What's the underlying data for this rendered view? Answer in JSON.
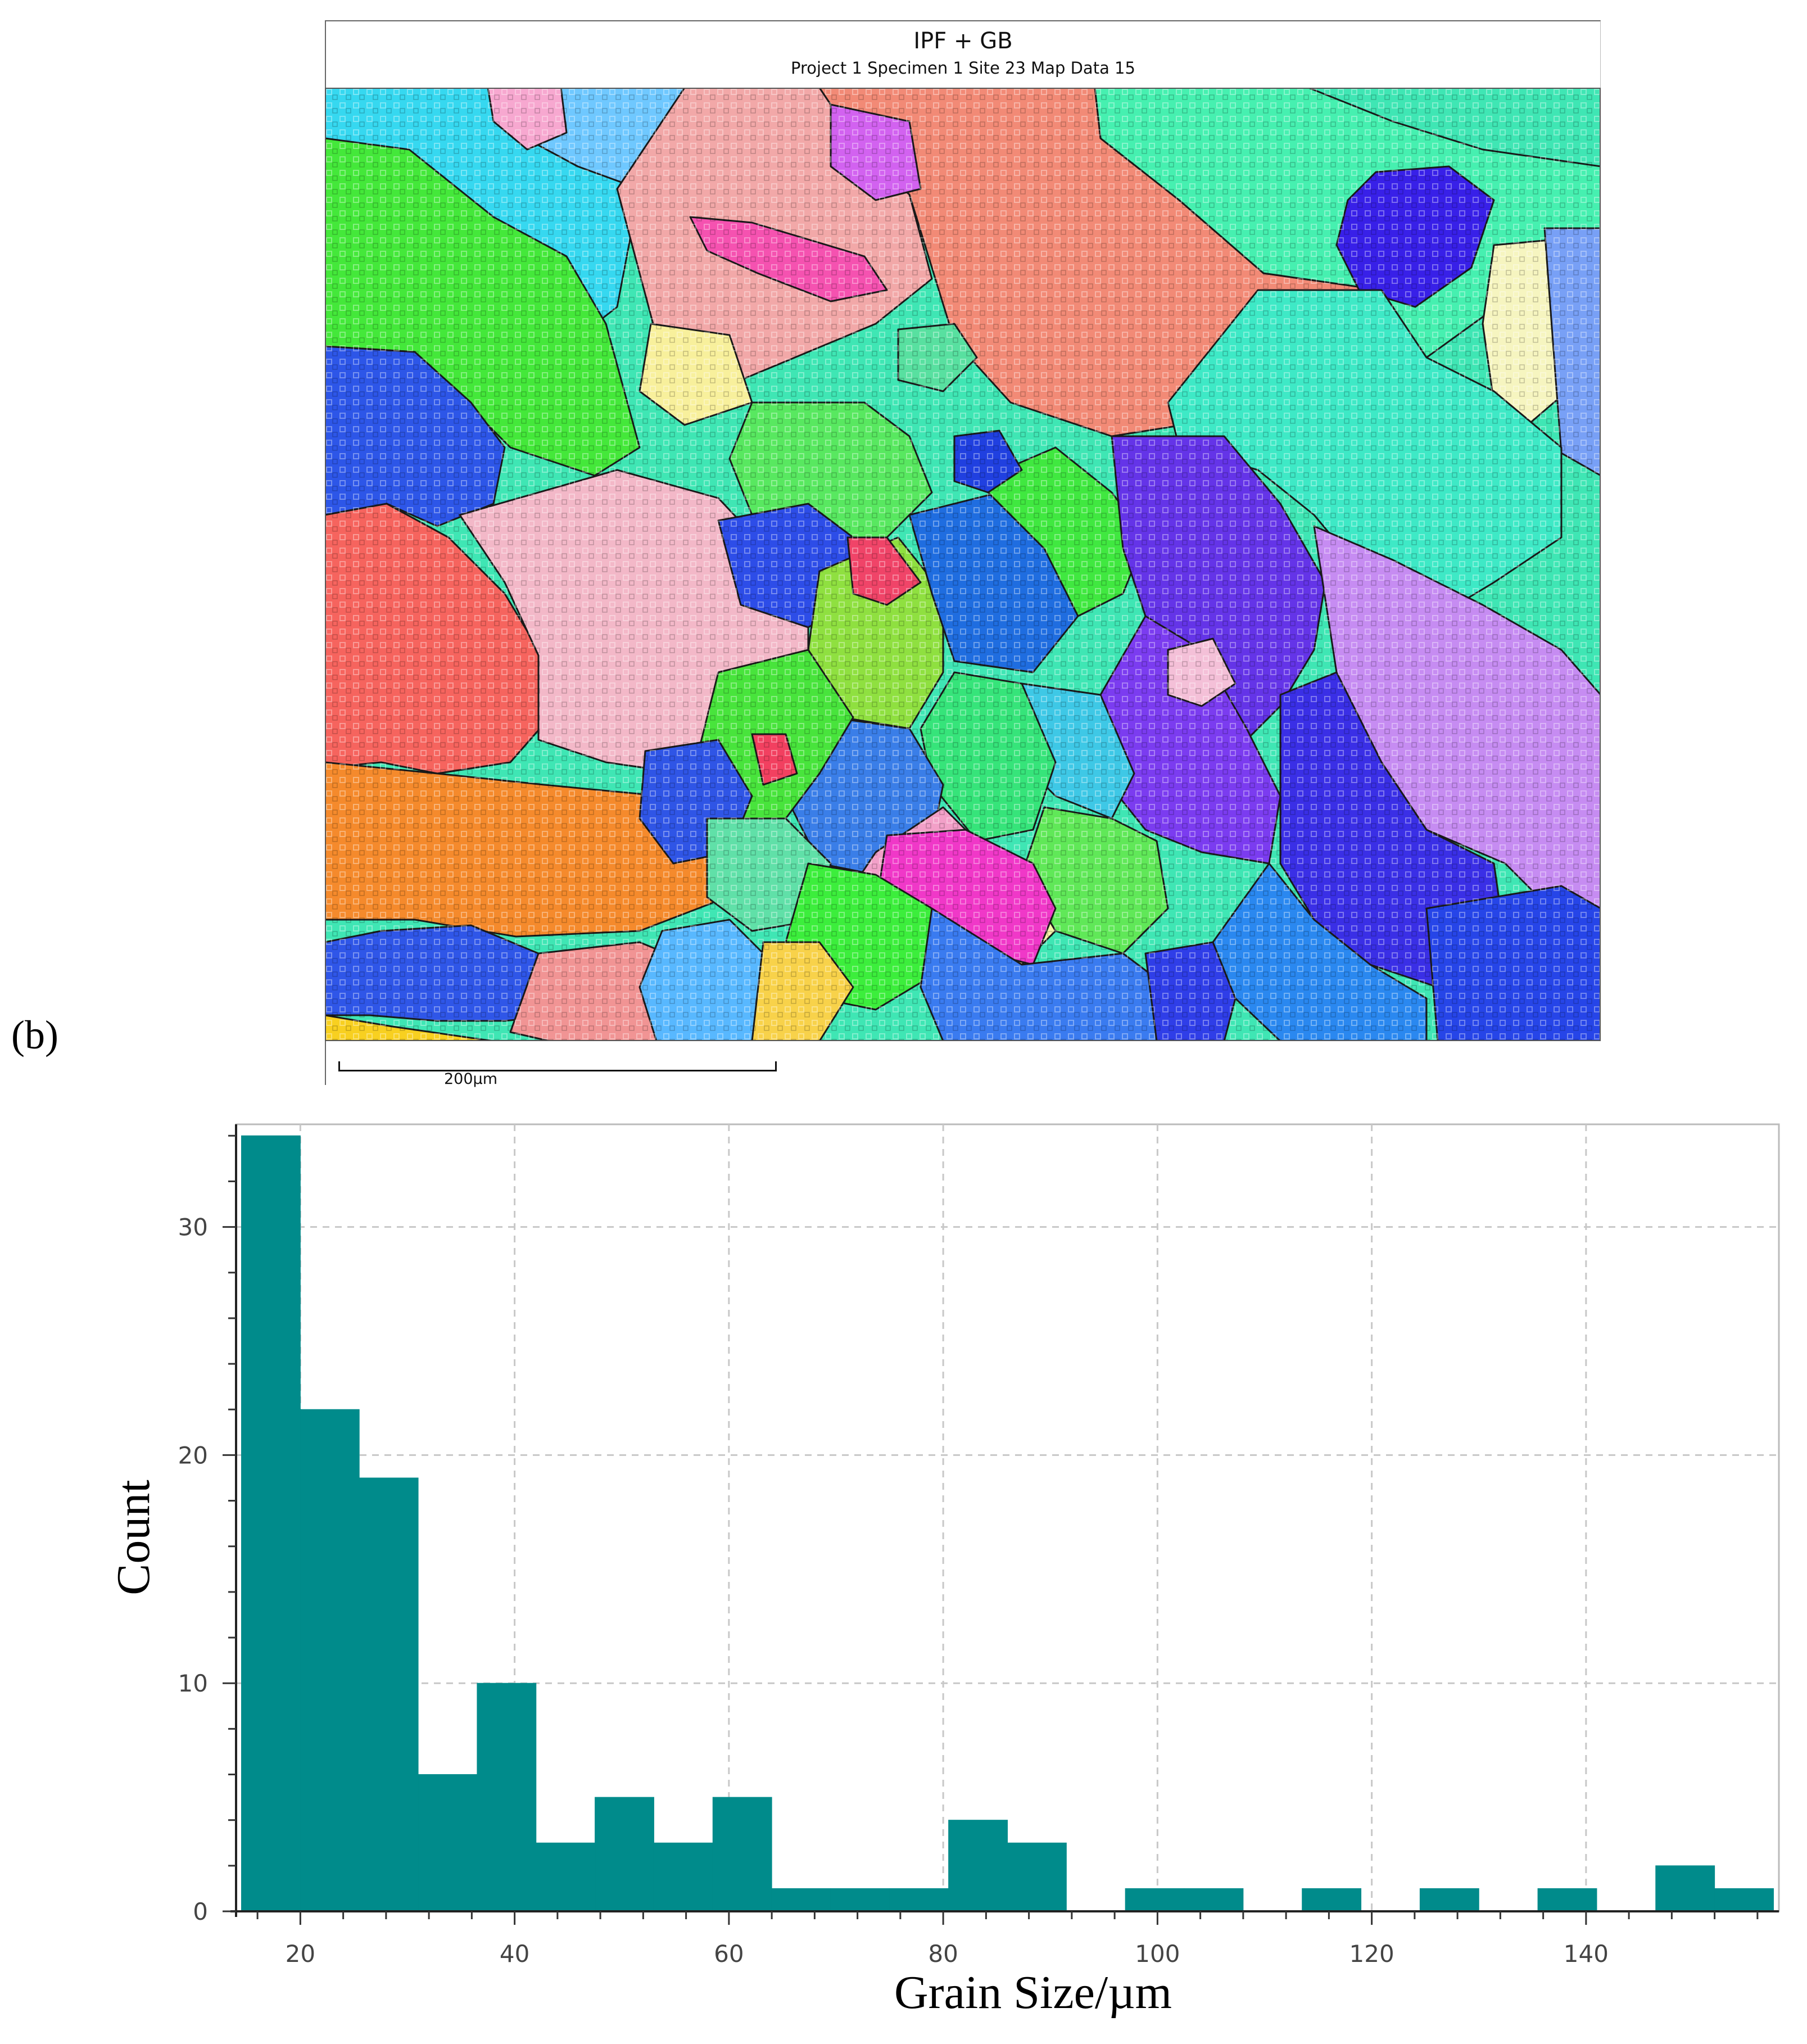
{
  "panel_label": "(b)",
  "map": {
    "title": "IPF + GB",
    "subtitle": "Project 1 Specimen 1 Site 23 Map Data 15",
    "scale_bar_label": "200µm"
  },
  "chart_data": {
    "type": "bar",
    "title": "",
    "xlabel": "Grain Size/µm",
    "ylabel": "Count",
    "xlim": [
      14,
      158
    ],
    "ylim": [
      0,
      34.5
    ],
    "xticks": [
      20,
      40,
      60,
      80,
      100,
      120,
      140
    ],
    "yticks": [
      0,
      10,
      20,
      30
    ],
    "grid": true,
    "bar_color": "#008b8b",
    "bins": [
      {
        "x0": 14.5,
        "x1": 20.0,
        "count": 34
      },
      {
        "x0": 20.0,
        "x1": 25.5,
        "count": 22
      },
      {
        "x0": 25.5,
        "x1": 31.0,
        "count": 19
      },
      {
        "x0": 31.0,
        "x1": 36.5,
        "count": 6
      },
      {
        "x0": 36.5,
        "x1": 42.0,
        "count": 10
      },
      {
        "x0": 42.0,
        "x1": 47.5,
        "count": 3
      },
      {
        "x0": 47.5,
        "x1": 53.0,
        "count": 5
      },
      {
        "x0": 53.0,
        "x1": 58.5,
        "count": 3
      },
      {
        "x0": 58.5,
        "x1": 64.0,
        "count": 5
      },
      {
        "x0": 64.0,
        "x1": 69.5,
        "count": 1
      },
      {
        "x0": 69.5,
        "x1": 75.0,
        "count": 1
      },
      {
        "x0": 75.0,
        "x1": 80.5,
        "count": 1
      },
      {
        "x0": 80.5,
        "x1": 86.0,
        "count": 4
      },
      {
        "x0": 86.0,
        "x1": 91.5,
        "count": 3
      },
      {
        "x0": 91.5,
        "x1": 97.0,
        "count": 0
      },
      {
        "x0": 97.0,
        "x1": 102.5,
        "count": 1
      },
      {
        "x0": 102.5,
        "x1": 108.0,
        "count": 1
      },
      {
        "x0": 108.0,
        "x1": 113.5,
        "count": 0
      },
      {
        "x0": 113.5,
        "x1": 119.0,
        "count": 1
      },
      {
        "x0": 119.0,
        "x1": 124.5,
        "count": 0
      },
      {
        "x0": 124.5,
        "x1": 130.0,
        "count": 1
      },
      {
        "x0": 130.0,
        "x1": 135.5,
        "count": 0
      },
      {
        "x0": 135.5,
        "x1": 141.0,
        "count": 1
      },
      {
        "x0": 141.0,
        "x1": 146.5,
        "count": 0
      },
      {
        "x0": 146.5,
        "x1": 152.0,
        "count": 2
      },
      {
        "x0": 152.0,
        "x1": 157.5,
        "count": 1
      }
    ]
  }
}
